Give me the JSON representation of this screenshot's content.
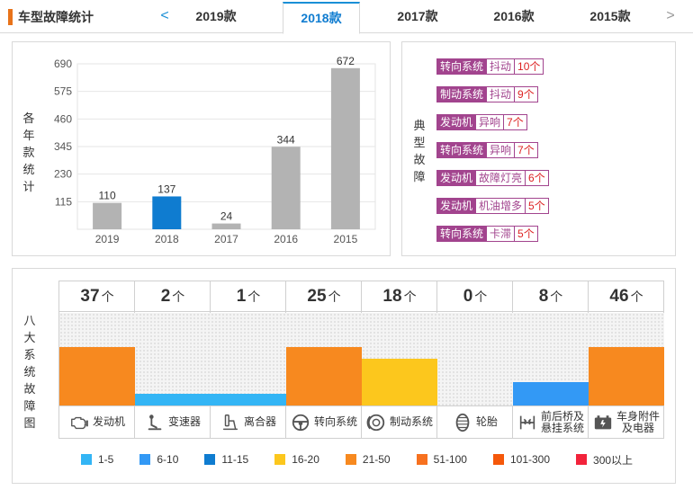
{
  "header": {
    "title": "车型故障统计",
    "prev_icon": "chevron-left-icon",
    "next_icon": "chevron-right-icon",
    "prev_glyph": "<",
    "next_glyph": ">",
    "tabs": [
      {
        "label": "2019款",
        "active": false
      },
      {
        "label": "2018款",
        "active": true
      },
      {
        "label": "2017款",
        "active": false
      },
      {
        "label": "2016款",
        "active": false
      },
      {
        "label": "2015款",
        "active": false
      }
    ]
  },
  "chart_data": {
    "type": "bar",
    "title": "",
    "ylabel": "各年款统计",
    "xlabel": "",
    "categories": [
      "2019",
      "2018",
      "2017",
      "2016",
      "2015"
    ],
    "values": [
      110,
      137,
      24,
      344,
      672
    ],
    "highlighted": "2018",
    "highlight_color": "#0f7cd0",
    "bar_color": "#b3b3b3",
    "yticks": [
      115,
      230,
      345,
      460,
      575,
      690
    ],
    "ylim": [
      0,
      690
    ],
    "grid": true,
    "legend": "none"
  },
  "faults": {
    "label": "典型故障",
    "items": [
      {
        "system": "转向系统",
        "symptom": "抖动",
        "count": "10个"
      },
      {
        "system": "制动系统",
        "symptom": "抖动",
        "count": "9个"
      },
      {
        "system": "发动机",
        "symptom": "异响",
        "count": "7个"
      },
      {
        "system": "转向系统",
        "symptom": "异响",
        "count": "7个"
      },
      {
        "system": "发动机",
        "symptom": "故障灯亮",
        "count": "6个"
      },
      {
        "system": "发动机",
        "symptom": "机油增多",
        "count": "5个"
      },
      {
        "system": "转向系统",
        "symptom": "卡滞",
        "count": "5个"
      }
    ]
  },
  "systems": {
    "label": "八大系统故障图",
    "unit": "个",
    "items": [
      {
        "name": "发动机",
        "count": 37,
        "color": "#f7891f",
        "icon": "engine-icon"
      },
      {
        "name": "变速器",
        "count": 2,
        "color": "#33b5f5",
        "icon": "gear-shift-icon"
      },
      {
        "name": "离合器",
        "count": 1,
        "color": "#33b5f5",
        "icon": "clutch-icon"
      },
      {
        "name": "转向系统",
        "count": 25,
        "color": "#f7891f",
        "icon": "steering-wheel-icon"
      },
      {
        "name": "制动系统",
        "count": 18,
        "color": "#fcc71d",
        "icon": "brake-disc-icon"
      },
      {
        "name": "轮胎",
        "count": 0,
        "color": "#33b5f5",
        "icon": "tire-icon"
      },
      {
        "name": "前后桥及悬挂系统",
        "name_lines": [
          "前后桥及",
          "悬挂系统"
        ],
        "count": 8,
        "color": "#3399f5",
        "icon": "suspension-icon"
      },
      {
        "name": "车身附件及电器",
        "name_lines": [
          "车身附件",
          "及电器"
        ],
        "count": 46,
        "color": "#f7891f",
        "icon": "battery-icon"
      }
    ]
  },
  "legend": [
    {
      "label": "1-5",
      "color": "#33b5f5"
    },
    {
      "label": "6-10",
      "color": "#3399f5"
    },
    {
      "label": "11-15",
      "color": "#0f7cd0"
    },
    {
      "label": "16-20",
      "color": "#fcc71d"
    },
    {
      "label": "21-50",
      "color": "#f7891f"
    },
    {
      "label": "51-100",
      "color": "#f7711f"
    },
    {
      "label": "101-300",
      "color": "#f5580a"
    },
    {
      "label": "300以上",
      "color": "#f2233b"
    }
  ]
}
